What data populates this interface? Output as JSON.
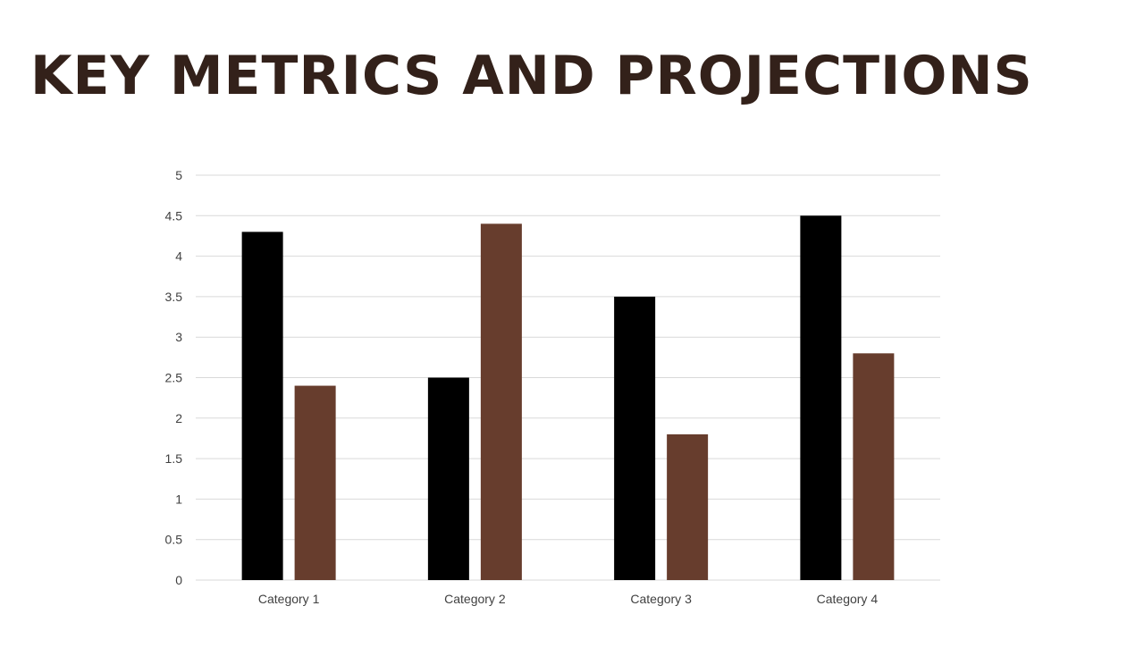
{
  "slide": {
    "title": "KEY METRICS AND PROJECTIONS"
  },
  "colors": {
    "title": "#33211a",
    "gridline": "#d9d9d9",
    "tick_label": "#404040"
  },
  "chart_data": {
    "type": "bar",
    "title": "",
    "xlabel": "",
    "ylabel": "",
    "categories": [
      "Category 1",
      "Category 2",
      "Category 3",
      "Category 4"
    ],
    "series": [
      {
        "values": [
          4.3,
          2.5,
          3.5,
          4.5
        ],
        "color": "#000000"
      },
      {
        "values": [
          2.4,
          4.4,
          1.8,
          2.8
        ],
        "color": "#673d2d"
      }
    ],
    "ylim": [
      0,
      5
    ],
    "yticks": [
      0,
      0.5,
      1,
      1.5,
      2,
      2.5,
      3,
      3.5,
      4,
      4.5,
      5
    ],
    "ytick_labels": [
      "0",
      "0.5",
      "1",
      "1.5",
      "2",
      "2.5",
      "3",
      "3.5",
      "4",
      "4.5",
      "5"
    ],
    "grid": true,
    "legend": "none"
  }
}
